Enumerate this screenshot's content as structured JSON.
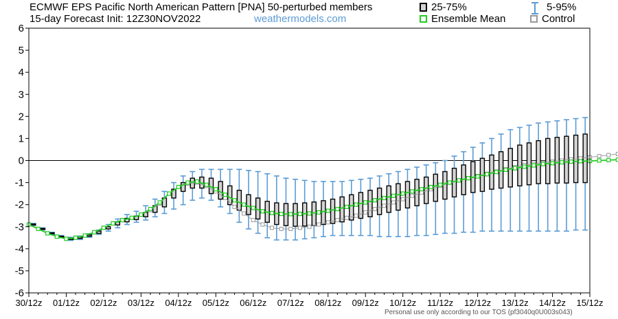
{
  "header": {
    "title_line1": "ECMWF EPS Pacific North American Pattern [PNA]  50-perturbed members",
    "title_line2": "15-day Forecast Init: 12Z30NOV2022",
    "source": "weathermodels.com"
  },
  "legend": {
    "iqr": "25-75%",
    "mean": "Ensemble Mean",
    "range": "5-95%",
    "control": "Control"
  },
  "footer": "Personal use only according to our TOS (pf3040q0U003s043)",
  "colors": {
    "box_fill": "#d4d4d4",
    "box_edge": "#000000",
    "whisker": "#5a9bd5",
    "mean": "#22cc22",
    "control": "#999999",
    "zero_line": "#000000"
  },
  "chart_data": {
    "type": "box",
    "x_tick_labels": [
      "30/12z",
      "01/12z",
      "02/12z",
      "03/12z",
      "04/12z",
      "05/12z",
      "06/12z",
      "07/12z",
      "08/12z",
      "09/12z",
      "10/12z",
      "11/12z",
      "12/12z",
      "13/12z",
      "14/12z",
      "15/12z"
    ],
    "y_ticks": [
      6,
      5,
      4,
      3,
      2,
      1,
      0,
      -1,
      -2,
      -3,
      -4,
      -5,
      -6
    ],
    "ylim": [
      -6,
      6
    ],
    "step_hours": 6,
    "grid": false,
    "legend_position": "top-right",
    "series": [
      {
        "name": "Ensemble Mean",
        "values": [
          -2.9,
          -3.1,
          -3.3,
          -3.45,
          -3.55,
          -3.5,
          -3.4,
          -3.25,
          -3.05,
          -2.85,
          -2.7,
          -2.6,
          -2.45,
          -2.2,
          -1.9,
          -1.5,
          -1.2,
          -1.0,
          -0.95,
          -1.1,
          -1.3,
          -1.55,
          -1.8,
          -2.0,
          -2.15,
          -2.3,
          -2.38,
          -2.42,
          -2.43,
          -2.42,
          -2.4,
          -2.35,
          -2.28,
          -2.2,
          -2.1,
          -2.0,
          -1.9,
          -1.8,
          -1.7,
          -1.6,
          -1.5,
          -1.4,
          -1.3,
          -1.2,
          -1.1,
          -1.0,
          -0.9,
          -0.8,
          -0.72,
          -0.62,
          -0.52,
          -0.42,
          -0.35,
          -0.28,
          -0.22,
          -0.16,
          -0.12,
          -0.08,
          -0.05,
          -0.03,
          -0.02,
          0.0,
          0.02,
          0.04,
          0.06,
          0.08,
          0.1,
          0.12,
          0.15,
          0.18,
          0.2
        ]
      },
      {
        "name": "Control",
        "values": [
          -2.9,
          -3.1,
          -3.3,
          -3.45,
          -3.55,
          -3.5,
          -3.4,
          -3.25,
          -3.05,
          -2.85,
          -2.7,
          -2.6,
          -2.45,
          -2.25,
          -1.95,
          -1.5,
          -1.2,
          -1.05,
          -1.0,
          -1.15,
          -1.4,
          -1.7,
          -2.1,
          -2.4,
          -2.7,
          -2.9,
          -3.05,
          -3.1,
          -3.1,
          -3.05,
          -3.0,
          -2.9,
          -2.8,
          -2.7,
          -2.6,
          -2.5,
          -2.35,
          -2.2,
          -2.05,
          -1.9,
          -1.75,
          -1.6,
          -1.45,
          -1.3,
          -1.15,
          -1.0,
          -0.9,
          -0.8,
          -0.7,
          -0.6,
          -0.5,
          -0.4,
          -0.3,
          -0.2,
          -0.15,
          -0.1,
          -0.05,
          0.0,
          0.05,
          0.1,
          0.15,
          0.2,
          0.25,
          0.3,
          0.35,
          0.38,
          0.4,
          0.4,
          0.4,
          0.38,
          0.35
        ]
      },
      {
        "name": "25-75% low",
        "values": [
          -2.92,
          -3.12,
          -3.32,
          -3.47,
          -3.58,
          -3.53,
          -3.43,
          -3.3,
          -3.1,
          -2.92,
          -2.78,
          -2.68,
          -2.55,
          -2.35,
          -2.1,
          -1.7,
          -1.4,
          -1.25,
          -1.25,
          -1.5,
          -1.75,
          -2.0,
          -2.25,
          -2.45,
          -2.65,
          -2.8,
          -2.9,
          -2.95,
          -2.98,
          -2.97,
          -2.95,
          -2.9,
          -2.85,
          -2.78,
          -2.7,
          -2.62,
          -2.55,
          -2.45,
          -2.35,
          -2.25,
          -2.15,
          -2.05,
          -1.95,
          -1.85,
          -1.75,
          -1.65,
          -1.55,
          -1.45,
          -1.4,
          -1.3,
          -1.25,
          -1.2,
          -1.15,
          -1.1,
          -1.05,
          -1.05,
          -1.02,
          -1.02,
          -1.0,
          -1.0,
          -1.05,
          -1.05,
          -1.08,
          -1.1,
          -1.1,
          -1.12,
          -1.12,
          -1.15,
          -1.15,
          -1.2,
          -1.2
        ]
      },
      {
        "name": "25-75% high",
        "values": [
          -2.88,
          -3.08,
          -3.28,
          -3.43,
          -3.52,
          -3.47,
          -3.37,
          -3.2,
          -3.0,
          -2.78,
          -2.62,
          -2.52,
          -2.35,
          -2.05,
          -1.7,
          -1.3,
          -1.0,
          -0.8,
          -0.75,
          -0.8,
          -0.95,
          -1.15,
          -1.35,
          -1.55,
          -1.7,
          -1.85,
          -1.92,
          -1.95,
          -1.95,
          -1.92,
          -1.88,
          -1.82,
          -1.75,
          -1.65,
          -1.55,
          -1.45,
          -1.35,
          -1.25,
          -1.15,
          -1.05,
          -0.95,
          -0.85,
          -0.75,
          -0.62,
          -0.5,
          -0.35,
          -0.2,
          -0.05,
          0.1,
          0.25,
          0.4,
          0.55,
          0.7,
          0.8,
          0.9,
          1.0,
          1.05,
          1.1,
          1.15,
          1.2,
          1.25,
          1.25,
          1.25,
          1.25,
          1.25,
          1.25,
          1.25,
          1.2,
          1.2,
          1.2,
          1.15
        ]
      },
      {
        "name": "5-95% low",
        "values": [
          -2.95,
          -3.15,
          -3.35,
          -3.5,
          -3.62,
          -3.58,
          -3.48,
          -3.35,
          -3.2,
          -3.05,
          -2.9,
          -2.8,
          -2.7,
          -2.55,
          -2.4,
          -2.2,
          -2.0,
          -1.8,
          -1.7,
          -1.8,
          -2.1,
          -2.4,
          -2.8,
          -3.1,
          -3.3,
          -3.5,
          -3.6,
          -3.6,
          -3.6,
          -3.55,
          -3.5,
          -3.45,
          -3.4,
          -3.4,
          -3.4,
          -3.4,
          -3.4,
          -3.45,
          -3.45,
          -3.45,
          -3.45,
          -3.4,
          -3.4,
          -3.35,
          -3.3,
          -3.3,
          -3.25,
          -3.25,
          -3.2,
          -3.2,
          -3.2,
          -3.2,
          -3.2,
          -3.2,
          -3.2,
          -3.2,
          -3.2,
          -3.2,
          -3.15,
          -3.15,
          -3.1,
          -3.05,
          -3.0,
          -2.9,
          -2.8,
          -2.7,
          -2.6,
          -2.5,
          -2.4,
          -2.3,
          -2.25
        ]
      },
      {
        "name": "5-95% high",
        "values": [
          -2.85,
          -3.05,
          -3.25,
          -3.4,
          -3.48,
          -3.42,
          -3.32,
          -3.15,
          -2.9,
          -2.65,
          -2.45,
          -2.3,
          -2.05,
          -1.75,
          -1.4,
          -1.0,
          -0.7,
          -0.5,
          -0.4,
          -0.4,
          -0.4,
          -0.4,
          -0.4,
          -0.45,
          -0.5,
          -0.6,
          -0.7,
          -0.8,
          -0.85,
          -0.9,
          -0.95,
          -0.95,
          -0.95,
          -0.95,
          -0.9,
          -0.85,
          -0.8,
          -0.7,
          -0.6,
          -0.5,
          -0.4,
          -0.3,
          -0.2,
          -0.1,
          0.0,
          0.2,
          0.4,
          0.6,
          0.8,
          1.0,
          1.2,
          1.4,
          1.5,
          1.6,
          1.7,
          1.75,
          1.8,
          1.85,
          1.9,
          1.95,
          2.0,
          2.1,
          2.2,
          2.25,
          2.3,
          2.35,
          2.35,
          2.4,
          2.4,
          2.45,
          2.7
        ]
      }
    ]
  }
}
